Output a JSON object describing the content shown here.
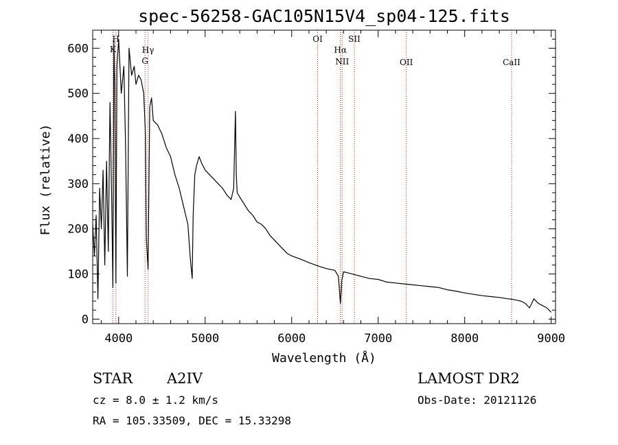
{
  "chart_data": {
    "type": "line",
    "title": "spec-56258-GAC105N15V4_sp04-125.fits",
    "xlabel": "Wavelength (Å)",
    "ylabel": "Flux (relative)",
    "xlim": [
      3700,
      9050
    ],
    "ylim": [
      -10,
      640
    ],
    "xticks": [
      4000,
      5000,
      6000,
      7000,
      8000,
      9000
    ],
    "yticks": [
      0,
      100,
      200,
      300,
      400,
      500,
      600
    ],
    "series": [
      {
        "x": [
          3700,
          3720,
          3740,
          3760,
          3780,
          3800,
          3820,
          3840,
          3860,
          3880,
          3900,
          3920,
          3933,
          3945,
          3955,
          3968,
          3980,
          4000,
          4030,
          4060,
          4080,
          4101,
          4120,
          4150,
          4180,
          4200,
          4230,
          4260,
          4290,
          4310,
          4320,
          4340,
          4360,
          4380,
          4400,
          4450,
          4500,
          4550,
          4600,
          4650,
          4700,
          4750,
          4800,
          4830,
          4850,
          4861,
          4880,
          4900,
          4930,
          4960,
          5000,
          5050,
          5100,
          5150,
          5200,
          5250,
          5300,
          5330,
          5350,
          5360,
          5370,
          5400,
          5450,
          5500,
          5550,
          5600,
          5650,
          5700,
          5750,
          5800,
          5850,
          5900,
          5950,
          6000,
          6100,
          6200,
          6300,
          6400,
          6500,
          6540,
          6563,
          6580,
          6600,
          6700,
          6800,
          6900,
          7000,
          7100,
          7200,
          7300,
          7400,
          7500,
          7600,
          7700,
          7800,
          7900,
          8000,
          8100,
          8200,
          8300,
          8400,
          8500,
          8550,
          8600,
          8650,
          8700,
          8750,
          8800,
          8850,
          8900,
          8950,
          9000
        ],
        "y": [
          210,
          140,
          230,
          45,
          290,
          200,
          330,
          120,
          350,
          150,
          480,
          260,
          70,
          620,
          520,
          80,
          560,
          620,
          500,
          560,
          380,
          95,
          600,
          540,
          560,
          520,
          540,
          530,
          500,
          410,
          180,
          110,
          470,
          490,
          440,
          430,
          410,
          380,
          360,
          320,
          290,
          250,
          210,
          130,
          90,
          230,
          320,
          340,
          360,
          345,
          330,
          320,
          310,
          300,
          290,
          275,
          265,
          290,
          460,
          320,
          280,
          270,
          255,
          240,
          230,
          215,
          210,
          200,
          185,
          175,
          165,
          155,
          145,
          140,
          133,
          125,
          118,
          112,
          108,
          95,
          35,
          85,
          105,
          100,
          95,
          90,
          88,
          82,
          80,
          78,
          76,
          74,
          72,
          70,
          65,
          62,
          58,
          55,
          52,
          50,
          48,
          45,
          44,
          42,
          40,
          35,
          25,
          45,
          35,
          30,
          25,
          15
        ]
      }
    ],
    "lines": [
      {
        "label": "H",
        "x": 3968
      },
      {
        "label": "K",
        "x": 3933
      },
      {
        "label": "Hγ",
        "x": 4340
      },
      {
        "label": "G",
        "x": 4305
      },
      {
        "label": "OI",
        "x": 6300
      },
      {
        "label": "Hα",
        "x": 6563
      },
      {
        "label": "NII",
        "x": 6583
      },
      {
        "label": "SII",
        "x": 6724
      },
      {
        "label": "OII",
        "x": 7325
      },
      {
        "label": "CaII",
        "x": 8542
      }
    ]
  },
  "info": {
    "class": "STAR",
    "subclass": "A2IV",
    "survey": "LAMOST DR2",
    "cz": "cz = 8.0 ± 1.2 km/s",
    "obs_date": "Obs-Date: 20121126",
    "coords": "RA = 105.33509, DEC =  15.33298"
  },
  "colors": {
    "spectrum": "#000000",
    "line_markers": "#b22222",
    "axes": "#000000"
  }
}
